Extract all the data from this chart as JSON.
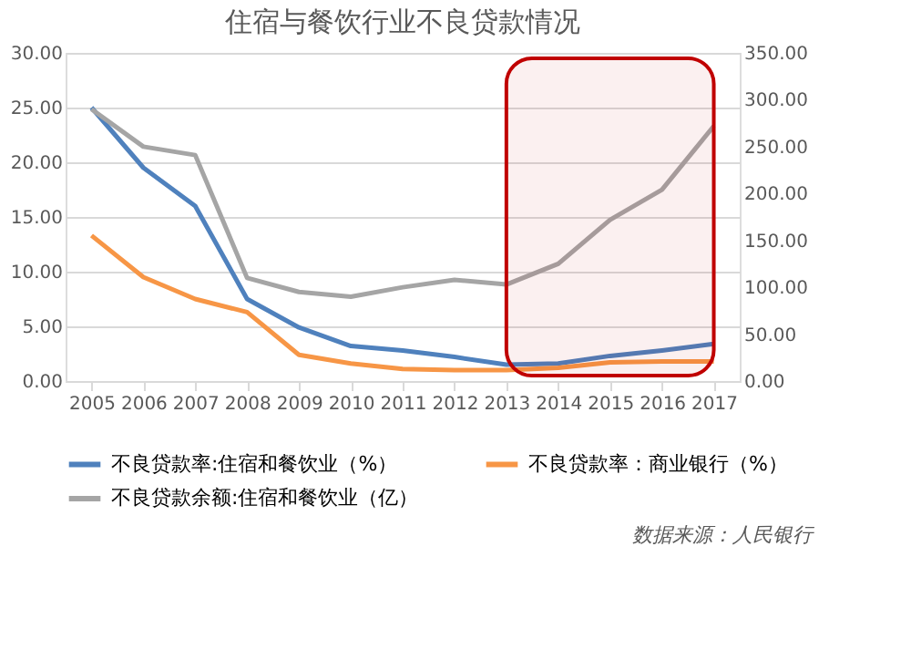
{
  "chart_data": {
    "type": "line",
    "title": "住宿与餐饮行业不良贷款情况",
    "categories": [
      "2005",
      "2006",
      "2007",
      "2008",
      "2009",
      "2010",
      "2011",
      "2012",
      "2013",
      "2014",
      "2015",
      "2016",
      "2017"
    ],
    "series": [
      {
        "name": "不良贷款率:住宿和餐饮业（%）",
        "color": "#4f81bd",
        "values": [
          25.0,
          19.5,
          16.0,
          7.5,
          4.9,
          3.2,
          2.8,
          2.2,
          1.5,
          1.6,
          2.3,
          2.8,
          3.4
        ]
      },
      {
        "name": "不良贷款率：商业银行（%）",
        "color": "#f79646",
        "values": [
          13.3,
          9.5,
          7.5,
          6.3,
          2.4,
          1.6,
          1.1,
          1.0,
          1.0,
          1.2,
          1.7,
          1.8,
          1.8
        ]
      },
      {
        "name": "不良贷款余额:住宿和餐饮业（亿）",
        "color": "#a5a5a5",
        "axis": "y2",
        "values": [
          290,
          250,
          241,
          110,
          95,
          90,
          100,
          108,
          103,
          125,
          172,
          204,
          272
        ]
      }
    ],
    "ylim": [
      0,
      30
    ],
    "yticks": [
      {
        "value": 0,
        "label": "0.00"
      },
      {
        "value": 5,
        "label": "5.00"
      },
      {
        "value": 10,
        "label": "10.00"
      },
      {
        "value": 15,
        "label": "15.00"
      },
      {
        "value": 20,
        "label": "20.00"
      },
      {
        "value": 25,
        "label": "25.00"
      },
      {
        "value": 30,
        "label": "30.00"
      }
    ],
    "y2lim": [
      0,
      350
    ],
    "y2ticks": [
      {
        "value": 0,
        "label": "0.00"
      },
      {
        "value": 50,
        "label": "50.00"
      },
      {
        "value": 100,
        "label": "100.00"
      },
      {
        "value": 150,
        "label": "150.00"
      },
      {
        "value": 200,
        "label": "200.00"
      },
      {
        "value": 250,
        "label": "250.00"
      },
      {
        "value": 300,
        "label": "300.00"
      },
      {
        "value": 350,
        "label": "350.00"
      }
    ],
    "bands": [
      {
        "axis": "x",
        "from": "2013",
        "to": "2017",
        "color": "#c00000"
      }
    ],
    "grid": "y",
    "legend": "bottom",
    "marker": "none",
    "line_style": "solid",
    "annotations": [
      "数据来源：人民银行"
    ]
  }
}
